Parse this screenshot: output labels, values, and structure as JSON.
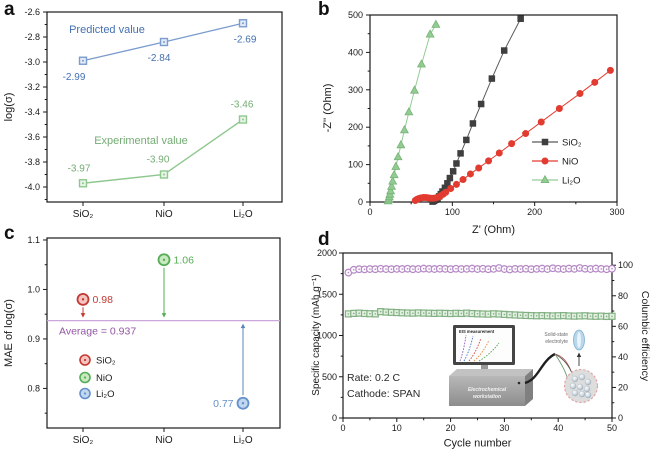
{
  "figure": {
    "panel_letters": {
      "a": "a",
      "b": "b",
      "c": "c",
      "d": "d"
    }
  },
  "chart_data": [
    {
      "panel": "a",
      "type": "line",
      "categories": [
        "SiO₂",
        "NiO",
        "Li₂O"
      ],
      "ylabel": "log(σ)",
      "ylim": [
        -4.12,
        -2.6
      ],
      "yticks": [
        -4.0,
        -3.8,
        -3.6,
        -3.4,
        -3.2,
        -3.0,
        -2.8,
        -2.6
      ],
      "yminor": [
        -4.1,
        -3.9,
        -3.7,
        -3.5,
        -3.3,
        -3.1,
        -2.9,
        -2.7
      ],
      "grid": false,
      "series": [
        {
          "name": "Predicted value",
          "color": "#7b9cce",
          "fill": "#e3ebf6",
          "text_color": "#4470b0",
          "values": [
            -2.99,
            -2.84,
            -2.69
          ],
          "labels": [
            "-2.99",
            "-2.84",
            "-2.69"
          ]
        },
        {
          "name": "Experimental value",
          "color": "#8fc88f",
          "fill": "#e7f4e7",
          "text_color": "#74ac74",
          "values": [
            -3.97,
            -3.9,
            -3.46
          ],
          "labels": [
            "-3.97",
            "-3.90",
            "-3.46"
          ]
        }
      ]
    },
    {
      "panel": "b",
      "type": "scatter",
      "xlabel": "Z' (Ohm)",
      "ylabel": "-Z'' (Ohm)",
      "xlim": [
        0,
        300
      ],
      "ylim": [
        0,
        500
      ],
      "xticks": [
        0,
        100,
        200,
        300
      ],
      "yticks": [
        0,
        100,
        200,
        300,
        400,
        500
      ],
      "xminor": [
        50,
        150,
        250
      ],
      "yminor": [
        50,
        150,
        250,
        350,
        450
      ],
      "legend_position": "right-center",
      "series": [
        {
          "name": "SiO₂",
          "color": "#3f3f3f",
          "line_color": "#5a5a5a",
          "marker": "square",
          "points": [
            [
              76,
              1
            ],
            [
              78,
              3
            ],
            [
              80,
              6
            ],
            [
              82,
              10
            ],
            [
              84,
              15
            ],
            [
              86,
              21
            ],
            [
              88,
              28
            ],
            [
              91,
              38
            ],
            [
              94,
              50
            ],
            [
              97,
              64
            ],
            [
              101,
              82
            ],
            [
              105,
              103
            ],
            [
              110,
              130
            ],
            [
              117,
              166
            ],
            [
              125,
              210
            ],
            [
              135,
              262
            ],
            [
              148,
              330
            ],
            [
              163,
              405
            ],
            [
              183,
              490
            ]
          ]
        },
        {
          "name": "NiO",
          "color": "#e23b30",
          "line_color": "#e23b30",
          "marker": "circle",
          "points": [
            [
              55,
              4
            ],
            [
              57,
              7
            ],
            [
              59,
              9
            ],
            [
              62,
              11
            ],
            [
              65,
              12
            ],
            [
              68,
              12
            ],
            [
              71,
              11
            ],
            [
              74,
              10
            ],
            [
              77,
              10
            ],
            [
              80,
              11
            ],
            [
              83,
              13
            ],
            [
              86,
              17
            ],
            [
              89,
              21
            ],
            [
              92,
              26
            ],
            [
              98,
              36
            ],
            [
              105,
              47
            ],
            [
              113,
              60
            ],
            [
              122,
              75
            ],
            [
              132,
              91
            ],
            [
              144,
              110
            ],
            [
              157,
              131
            ],
            [
              172,
              156
            ],
            [
              189,
              183
            ],
            [
              208,
              214
            ],
            [
              230,
              250
            ],
            [
              255,
              290
            ],
            [
              273,
              320
            ],
            [
              292,
              352
            ]
          ]
        },
        {
          "name": "Li₂O",
          "color": "#93cc93",
          "stroke": "#76b276",
          "line_color": "#93cc93",
          "marker": "triangle",
          "points": [
            [
              22,
              2
            ],
            [
              22.7,
              7
            ],
            [
              23.4,
              13
            ],
            [
              24.2,
              20
            ],
            [
              25.1,
              29
            ],
            [
              26.2,
              41
            ],
            [
              27.6,
              55
            ],
            [
              29.3,
              72
            ],
            [
              31.4,
              94
            ],
            [
              34.1,
              120
            ],
            [
              37.5,
              152
            ],
            [
              41.8,
              192
            ],
            [
              47.2,
              240
            ],
            [
              54,
              298
            ],
            [
              62.5,
              368
            ],
            [
              73,
              448
            ],
            [
              80,
              474
            ]
          ]
        }
      ]
    },
    {
      "panel": "c",
      "type": "scatter",
      "categories": [
        "SiO₂",
        "NiO",
        "Li₂O"
      ],
      "ylabel": "MAE of log(σ)",
      "ylim": [
        0.72,
        1.104
      ],
      "yticks": [
        0.8,
        0.9,
        1.0,
        1.1
      ],
      "yminor": [
        0.75,
        0.85,
        0.95,
        1.05
      ],
      "average": {
        "value": 0.937,
        "label": "Average = 0.937",
        "line_color": "#cba6da",
        "text_color": "#9455a2"
      },
      "points": [
        {
          "name": "SiO₂",
          "value": 0.98,
          "label": "0.98",
          "stroke": "#c43a32",
          "fill": "#f6c4c0",
          "arrow_color": "#c43a32"
        },
        {
          "name": "NiO",
          "value": 1.06,
          "label": "1.06",
          "stroke": "#55ad55",
          "fill": "#c9e9c1",
          "arrow_color": "#55ad55"
        },
        {
          "name": "Li₂O",
          "value": 0.77,
          "label": "0.77",
          "stroke": "#6590cc",
          "fill": "#c0d7ef",
          "arrow_color": "#5b84b8"
        }
      ]
    },
    {
      "panel": "d",
      "type": "line",
      "xlabel": "Cycle number",
      "ylabel_left": "Specific capacity (mAh g⁻¹)",
      "ylabel_right": "Columbic efficiency",
      "xlim": [
        0,
        50
      ],
      "ylim_left": [
        0,
        2000
      ],
      "ylim_right": [
        0,
        108
      ],
      "xticks": [
        0,
        10,
        20,
        30,
        40,
        50
      ],
      "xminor": [
        5,
        15,
        25,
        35,
        45
      ],
      "yticks_left": [
        0,
        500,
        1000,
        1500,
        2000
      ],
      "yminor_left": [
        250,
        750,
        1250,
        1750
      ],
      "yticks_right": [
        0,
        20,
        40,
        60,
        80,
        100
      ],
      "yminor_right": [
        10,
        30,
        50,
        70,
        90
      ],
      "annotations": {
        "rate": "Rate: 0.2 C",
        "cathode": "Cathode: SPAN"
      },
      "series": [
        {
          "name": "Specific capacity",
          "axis": "left",
          "color": "#82b082",
          "fill": "#e2f0e2",
          "marker": "square",
          "x_start": 1,
          "values": [
            1262,
            1268,
            1271,
            1267,
            1264,
            1262,
            1289,
            1284,
            1281,
            1278,
            1275,
            1273,
            1271,
            1274,
            1272,
            1270,
            1268,
            1270,
            1268,
            1266,
            1269,
            1267,
            1271,
            1266,
            1263,
            1261,
            1259,
            1263,
            1260,
            1256,
            1252,
            1249,
            1246,
            1243,
            1241,
            1239,
            1241,
            1239,
            1237,
            1239,
            1241,
            1237,
            1235,
            1237,
            1239,
            1235,
            1233,
            1235,
            1231,
            1233
          ]
        },
        {
          "name": "Columbic efficiency",
          "axis": "right",
          "color": "#b489c4",
          "fill": "#fdfbfe",
          "marker": "circle",
          "x_start": 1,
          "values": [
            95.2,
            97.0,
            97.4,
            97.3,
            97.5,
            97.4,
            97.7,
            97.5,
            97.4,
            97.6,
            97.5,
            97.7,
            97.4,
            97.5,
            97.8,
            97.6,
            97.5,
            97.7,
            97.6,
            97.4,
            97.7,
            97.5,
            97.6,
            97.8,
            97.5,
            97.7,
            97.4,
            97.6,
            98.2,
            97.5,
            97.2,
            97.6,
            97.5,
            97.7,
            97.4,
            97.6,
            97.8,
            97.5,
            98.0,
            97.7,
            97.5,
            97.8,
            97.6,
            98.2,
            97.7,
            97.5,
            97.8,
            97.6,
            97.4,
            97.7
          ]
        }
      ]
    }
  ],
  "inset": {
    "monitor_label": "EIS measurement",
    "box_label_line1": "Electrochemical",
    "box_label_line2": "workstation",
    "electrolyte_label_line1": "Solid-state",
    "electrolyte_label_line2": "electrolyte"
  }
}
